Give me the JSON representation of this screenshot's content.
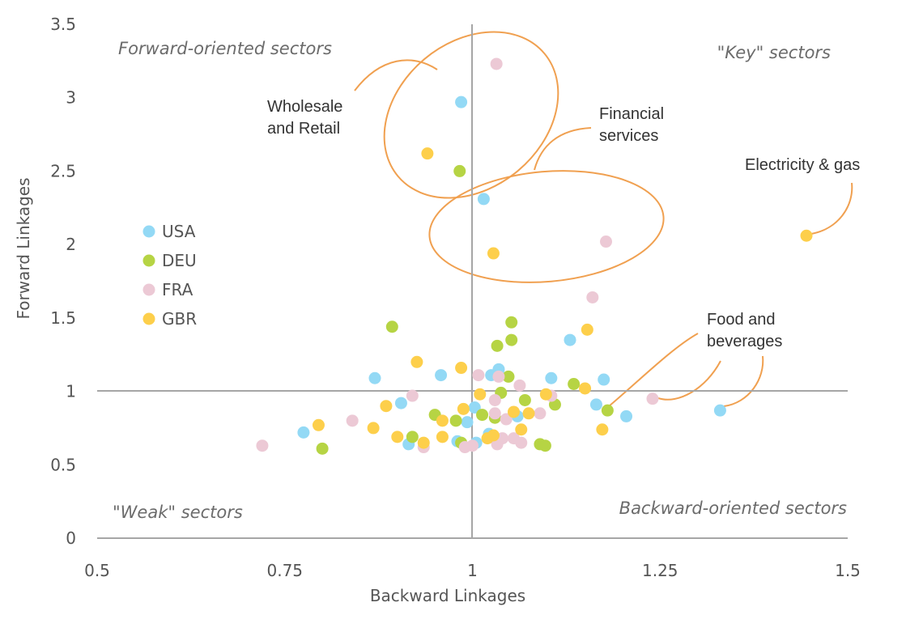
{
  "colors": {
    "USA": "#93d9f5",
    "DEU": "#b6d444",
    "FRA": "#ecc9d5",
    "GBR": "#fdcf4b",
    "annotation_line": "#f0a050",
    "axis": "#a6a6a6",
    "text": "#555555"
  },
  "chart_data": {
    "type": "scatter",
    "xlabel": "Backward Linkages",
    "ylabel": "Forward Linkages",
    "xlim": [
      0.5,
      1.5
    ],
    "ylim": [
      0,
      3.5
    ],
    "xticks": [
      0.5,
      0.75,
      1,
      1.25,
      1.5
    ],
    "xtick_labels": [
      "0.5",
      "0.75",
      "1",
      "1.25",
      "1.5"
    ],
    "yticks": [
      0,
      0.5,
      1,
      1.5,
      2,
      2.5,
      3,
      3.5
    ],
    "ytick_labels": [
      "0",
      "0.5",
      "1",
      "1.5",
      "2",
      "2.5",
      "3",
      "3.5"
    ],
    "reference_lines": {
      "x": 1,
      "y": 1
    },
    "legend": {
      "position": "left",
      "entries": [
        "USA",
        "DEU",
        "FRA",
        "GBR"
      ]
    },
    "quadrant_labels": {
      "top_left": "Forward-oriented sectors",
      "top_right": "\"Key\" sectors",
      "bottom_left": "\"Weak\" sectors",
      "bottom_right": "Backward-oriented sectors"
    },
    "annotations": {
      "wholesale": [
        "Wholesale",
        "and Retail"
      ],
      "financial": [
        "Financial",
        "services"
      ],
      "electricity": [
        "Electricity & gas"
      ],
      "food": [
        "Food and",
        "beverages"
      ]
    },
    "series": [
      {
        "name": "USA",
        "points": [
          [
            0.985,
            2.97
          ],
          [
            1.015,
            2.31
          ],
          [
            0.87,
            1.09
          ],
          [
            0.958,
            1.11
          ],
          [
            1.035,
            1.15
          ],
          [
            1.025,
            1.11
          ],
          [
            1.105,
            1.09
          ],
          [
            1.13,
            1.35
          ],
          [
            1.175,
            1.08
          ],
          [
            1.165,
            0.91
          ],
          [
            1.205,
            0.83
          ],
          [
            1.33,
            0.87
          ],
          [
            0.775,
            0.72
          ],
          [
            0.905,
            0.92
          ],
          [
            0.915,
            0.64
          ],
          [
            0.98,
            0.66
          ],
          [
            0.993,
            0.79
          ],
          [
            1.003,
            0.89
          ],
          [
            1.005,
            0.65
          ],
          [
            1.022,
            0.71
          ],
          [
            1.06,
            0.83
          ]
        ]
      },
      {
        "name": "DEU",
        "points": [
          [
            0.983,
            2.5
          ],
          [
            0.893,
            1.44
          ],
          [
            1.052,
            1.47
          ],
          [
            1.052,
            1.35
          ],
          [
            1.033,
            1.31
          ],
          [
            1.048,
            1.1
          ],
          [
            1.135,
            1.05
          ],
          [
            1.038,
            0.99
          ],
          [
            1.07,
            0.94
          ],
          [
            1.11,
            0.91
          ],
          [
            1.18,
            0.87
          ],
          [
            1.013,
            0.84
          ],
          [
            1.03,
            0.82
          ],
          [
            0.95,
            0.84
          ],
          [
            0.978,
            0.8
          ],
          [
            0.92,
            0.69
          ],
          [
            0.8,
            0.61
          ],
          [
            1.09,
            0.64
          ],
          [
            1.097,
            0.63
          ],
          [
            0.985,
            0.65
          ]
        ]
      },
      {
        "name": "FRA",
        "points": [
          [
            1.032,
            3.23
          ],
          [
            1.178,
            2.02
          ],
          [
            1.16,
            1.64
          ],
          [
            1.008,
            1.11
          ],
          [
            1.035,
            1.1
          ],
          [
            1.063,
            1.04
          ],
          [
            0.92,
            0.97
          ],
          [
            1.03,
            0.94
          ],
          [
            1.105,
            0.97
          ],
          [
            1.09,
            0.85
          ],
          [
            1.03,
            0.85
          ],
          [
            1.045,
            0.81
          ],
          [
            1.24,
            0.95
          ],
          [
            0.84,
            0.8
          ],
          [
            0.72,
            0.63
          ],
          [
            1.055,
            0.68
          ],
          [
            1.04,
            0.68
          ],
          [
            1.065,
            0.65
          ],
          [
            1.033,
            0.64
          ],
          [
            0.935,
            0.62
          ],
          [
            0.99,
            0.62
          ],
          [
            1.0,
            0.63
          ]
        ]
      },
      {
        "name": "GBR",
        "points": [
          [
            0.94,
            2.62
          ],
          [
            1.028,
            1.94
          ],
          [
            1.445,
            2.06
          ],
          [
            1.153,
            1.42
          ],
          [
            0.926,
            1.2
          ],
          [
            0.985,
            1.16
          ],
          [
            1.15,
            1.02
          ],
          [
            1.098,
            0.98
          ],
          [
            1.01,
            0.98
          ],
          [
            1.055,
            0.86
          ],
          [
            1.075,
            0.85
          ],
          [
            0.988,
            0.88
          ],
          [
            0.885,
            0.9
          ],
          [
            0.795,
            0.77
          ],
          [
            0.868,
            0.75
          ],
          [
            0.96,
            0.8
          ],
          [
            0.9,
            0.69
          ],
          [
            0.96,
            0.69
          ],
          [
            0.935,
            0.65
          ],
          [
            1.065,
            0.74
          ],
          [
            1.173,
            0.74
          ],
          [
            1.02,
            0.68
          ],
          [
            1.028,
            0.7
          ]
        ]
      }
    ]
  }
}
